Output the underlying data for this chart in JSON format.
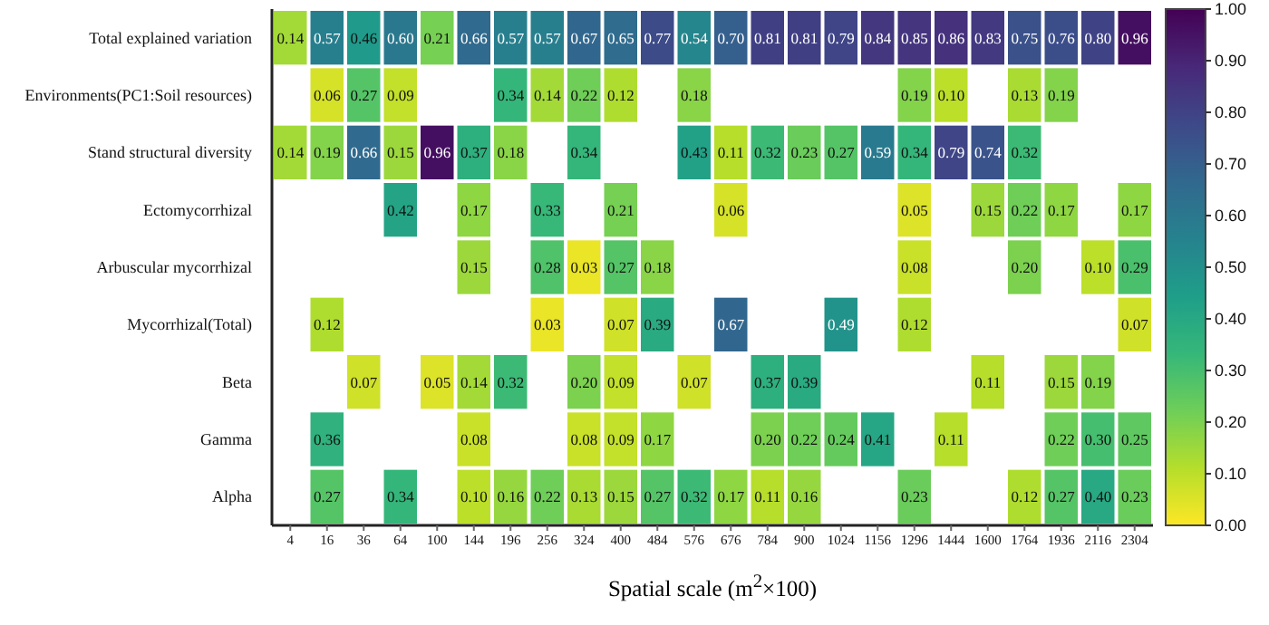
{
  "chart_data": {
    "type": "heatmap",
    "xlabel": "Spatial scale (m$^{2}$×100)",
    "categories": [
      "4",
      "16",
      "36",
      "64",
      "100",
      "144",
      "196",
      "256",
      "324",
      "400",
      "484",
      "576",
      "676",
      "784",
      "900",
      "1024",
      "1156",
      "1296",
      "1444",
      "1600",
      "1764",
      "1936",
      "2116",
      "2304"
    ],
    "y_categories": [
      "Total explained variation",
      "Environments(PC1:Soil resources)",
      "Stand structural diversity",
      "Ectomycorrhizal",
      "Arbuscular mycorrhizal",
      "Mycorrhizal(Total)",
      "Beta",
      "Gamma",
      "Alpha"
    ],
    "cells": [
      [
        0.14,
        0.57,
        0.46,
        0.6,
        0.21,
        0.66,
        0.57,
        0.57,
        0.67,
        0.65,
        0.77,
        0.54,
        0.7,
        0.81,
        0.81,
        0.79,
        0.84,
        0.85,
        0.86,
        0.83,
        0.75,
        0.76,
        0.8,
        0.96
      ],
      [
        null,
        0.06,
        0.27,
        0.09,
        null,
        null,
        0.34,
        0.14,
        0.22,
        0.12,
        null,
        0.18,
        null,
        null,
        null,
        null,
        null,
        0.19,
        0.1,
        null,
        0.13,
        0.19,
        null,
        null
      ],
      [
        0.14,
        0.19,
        0.66,
        0.15,
        0.96,
        0.37,
        0.18,
        null,
        0.34,
        null,
        null,
        0.43,
        0.11,
        0.32,
        0.23,
        0.27,
        0.59,
        0.34,
        0.79,
        0.74,
        0.32,
        null,
        null,
        null
      ],
      [
        null,
        null,
        null,
        0.42,
        null,
        0.17,
        null,
        0.33,
        null,
        0.21,
        null,
        null,
        0.06,
        null,
        null,
        null,
        null,
        0.05,
        null,
        0.15,
        0.22,
        0.17,
        null,
        0.17
      ],
      [
        null,
        null,
        null,
        null,
        null,
        0.15,
        null,
        0.28,
        0.03,
        0.27,
        0.18,
        null,
        null,
        null,
        null,
        null,
        null,
        0.08,
        null,
        null,
        0.2,
        null,
        0.1,
        0.29
      ],
      [
        null,
        0.12,
        null,
        null,
        null,
        null,
        null,
        0.03,
        null,
        0.07,
        0.39,
        null,
        0.67,
        null,
        null,
        0.49,
        null,
        0.12,
        null,
        null,
        null,
        null,
        null,
        0.07
      ],
      [
        null,
        null,
        0.07,
        null,
        0.05,
        0.14,
        0.32,
        null,
        0.2,
        0.09,
        null,
        0.07,
        null,
        0.37,
        0.39,
        null,
        null,
        null,
        null,
        0.11,
        null,
        0.15,
        0.19,
        null
      ],
      [
        null,
        0.36,
        null,
        null,
        null,
        0.08,
        null,
        null,
        0.08,
        0.09,
        0.17,
        null,
        null,
        0.2,
        0.22,
        0.24,
        0.41,
        null,
        0.11,
        null,
        null,
        0.22,
        0.3,
        0.25
      ],
      [
        null,
        0.27,
        null,
        0.34,
        null,
        0.1,
        0.16,
        0.22,
        0.13,
        0.15,
        0.27,
        0.32,
        0.17,
        0.11,
        0.16,
        null,
        null,
        0.23,
        null,
        null,
        0.12,
        0.27,
        0.4,
        0.23
      ]
    ],
    "cell_labels": [
      [
        "0.14",
        "0.57",
        "0.46",
        "0.60",
        "0.21",
        "0.66",
        "0.57",
        "0.57",
        "0.67",
        "0.65",
        "0.77",
        "0.54",
        "0.70",
        "0.81",
        "0.81",
        "0.79",
        "0.84",
        "0.85",
        "0.86",
        "0.83",
        "0.75",
        "0.76",
        "0.80",
        "0.96"
      ],
      [
        null,
        "0.06",
        "0.27",
        "0.09",
        null,
        null,
        "0.34",
        "0.14",
        "0.22",
        "0.12",
        null,
        "0.18",
        null,
        null,
        null,
        null,
        null,
        "0.19",
        "0.10",
        null,
        "0.13",
        "0.19",
        null,
        null
      ],
      [
        "0.14",
        "0.19",
        "0.66",
        "0.15",
        "0.96",
        "0.37",
        "0.18",
        null,
        "0.34",
        null,
        null,
        "0.43",
        "0.11",
        "0.32",
        "0.23",
        "0.27",
        "0.59",
        "0.34",
        "0.79",
        "0.74",
        "0.32",
        null,
        null,
        null
      ],
      [
        null,
        null,
        null,
        "0.42",
        null,
        "0.17",
        null,
        "0.33",
        null,
        "0.21",
        null,
        null,
        "0.06",
        null,
        null,
        null,
        null,
        "0.05",
        null,
        "0.15",
        "0.22",
        "0.17",
        null,
        "0.17"
      ],
      [
        null,
        null,
        null,
        null,
        null,
        "0.15",
        null,
        "0.28",
        "0.03",
        "0.27",
        "0.18",
        null,
        null,
        null,
        null,
        null,
        null,
        "0.08",
        null,
        null,
        "0.20",
        null,
        "0.10",
        "0.29"
      ],
      [
        null,
        "0.12",
        null,
        null,
        null,
        null,
        null,
        "0.03",
        null,
        "0.07",
        "0.39",
        null,
        "0.67",
        null,
        null,
        "0.49",
        null,
        "0.12",
        null,
        null,
        null,
        null,
        null,
        "0.07"
      ],
      [
        null,
        null,
        "0.07",
        null,
        "0.05",
        "0.14",
        "0.32",
        null,
        "0.20",
        "0.09",
        null,
        "0.07",
        null,
        "0.37",
        "0.39",
        null,
        null,
        null,
        null,
        "0.11",
        null,
        "0.15",
        "0.19",
        null
      ],
      [
        null,
        "0.36",
        null,
        null,
        null,
        "0.08",
        null,
        null,
        "0.08",
        "0.09",
        "0.17",
        null,
        null,
        "0.20",
        "0.22",
        "0.24",
        "0.41",
        null,
        "0.11",
        null,
        null,
        "0.22",
        "0.30",
        "0.25"
      ],
      [
        null,
        "0.27",
        null,
        "0.34",
        null,
        "0.10",
        "0.16",
        "0.22",
        "0.13",
        "0.15",
        "0.27",
        "0.32",
        "0.17",
        "0.11",
        "0.16",
        null,
        null,
        "0.23",
        null,
        null,
        "0.12",
        "0.27",
        "0.40",
        "0.23"
      ]
    ],
    "clim": [
      0,
      1
    ],
    "cticks": [
      {
        "value": 0,
        "label": "0.00"
      },
      {
        "value": 0.1,
        "label": "0.10"
      },
      {
        "value": 0.2,
        "label": "0.20"
      },
      {
        "value": 0.3,
        "label": "0.30"
      },
      {
        "value": 0.4,
        "label": "0.40"
      },
      {
        "value": 0.5,
        "label": "0.50"
      },
      {
        "value": 0.6,
        "label": "0.60"
      },
      {
        "value": 0.7,
        "label": "0.70"
      },
      {
        "value": 0.8,
        "label": "0.80"
      },
      {
        "value": 0.9,
        "label": "0.90"
      },
      {
        "value": 1,
        "label": "1.00"
      }
    ]
  }
}
